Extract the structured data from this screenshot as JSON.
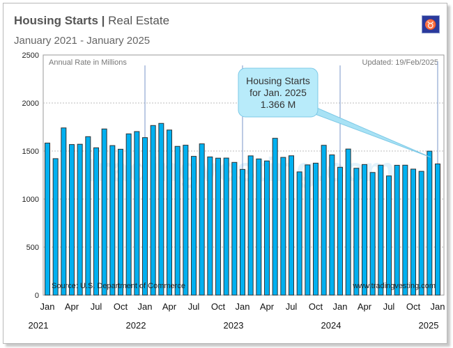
{
  "header": {
    "title_bold": "Housing Starts",
    "separator": "|",
    "title_rest": "Real Estate",
    "subtitle": "January 2021 - January 2025",
    "logo_icon": "tradingvesting-logo"
  },
  "chart_data": {
    "type": "bar",
    "ylabel": "Annual Rate in Millions",
    "updated": "Updated: 19/Feb/2025",
    "source": "Source: U.S. Department of Commerce",
    "credit": "www.tradingvesting.com",
    "watermark": "tradingvesting.com",
    "annotation": {
      "lines": [
        "Housing Starts",
        "for Jan. 2025",
        "1.366 M"
      ]
    },
    "ylim": [
      0,
      2500
    ],
    "yticks": [
      0,
      500,
      1000,
      1500,
      2000,
      2500
    ],
    "grid": true,
    "bar_color": "#00b0f0",
    "x_month_labels": [
      "Jan",
      "Apr",
      "Jul",
      "Oct",
      "Jan",
      "Apr",
      "Jul",
      "Oct",
      "Jan",
      "Apr",
      "Jul",
      "Oct",
      "Jan",
      "Apr",
      "Jul",
      "Oct",
      "Jan"
    ],
    "x_year_labels": [
      "2021",
      "2022",
      "2023",
      "2024",
      "2025"
    ],
    "categories": [
      "2021-01",
      "2021-02",
      "2021-03",
      "2021-04",
      "2021-05",
      "2021-06",
      "2021-07",
      "2021-08",
      "2021-09",
      "2021-10",
      "2021-11",
      "2021-12",
      "2022-01",
      "2022-02",
      "2022-03",
      "2022-04",
      "2022-05",
      "2022-06",
      "2022-07",
      "2022-08",
      "2022-09",
      "2022-10",
      "2022-11",
      "2022-12",
      "2023-01",
      "2023-02",
      "2023-03",
      "2023-04",
      "2023-05",
      "2023-06",
      "2023-07",
      "2023-08",
      "2023-09",
      "2023-10",
      "2023-11",
      "2023-12",
      "2024-01",
      "2024-02",
      "2024-03",
      "2024-04",
      "2024-05",
      "2024-06",
      "2024-07",
      "2024-08",
      "2024-09",
      "2024-10",
      "2024-11",
      "2024-12",
      "2025-01"
    ],
    "values": [
      1583,
      1421,
      1741,
      1568,
      1571,
      1650,
      1534,
      1730,
      1557,
      1519,
      1679,
      1703,
      1640,
      1766,
      1788,
      1719,
      1549,
      1561,
      1445,
      1575,
      1439,
      1426,
      1427,
      1382,
      1309,
      1450,
      1418,
      1397,
      1633,
      1434,
      1451,
      1283,
      1356,
      1374,
      1560,
      1460,
      1331,
      1521,
      1321,
      1360,
      1277,
      1353,
      1241,
      1352,
      1353,
      1312,
      1289,
      1499,
      1366
    ]
  }
}
